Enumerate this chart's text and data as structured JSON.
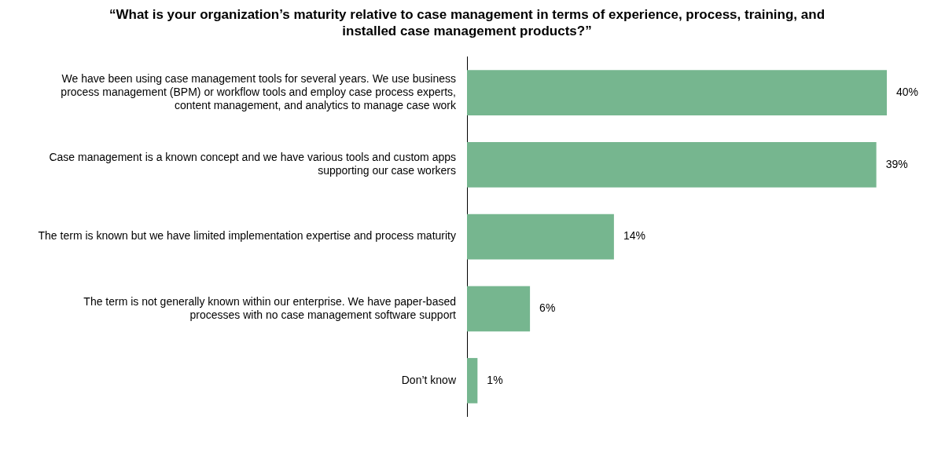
{
  "chart_data": {
    "type": "bar",
    "orientation": "horizontal",
    "title": "“What is your organization’s maturity relative to case management in terms of experience, process, training, and installed case management products?”",
    "categories": [
      "We have been using case management tools for several years. We use business process management (BPM) or workflow tools and employ case process experts, content management, and analytics to manage case work",
      "Case management is a known concept and we have various tools and custom apps supporting our case workers",
      "The term is known but we have limited implementation expertise and process maturity",
      "The term is not generally known within our enterprise. We have paper-based processes with no case management software support",
      "Don’t know"
    ],
    "values": [
      40,
      39,
      14,
      6,
      1
    ],
    "value_labels": [
      "40%",
      "39%",
      "14%",
      "6%",
      "1%"
    ],
    "color": "#76b68f",
    "tick_labels": "y",
    "legend": false
  }
}
